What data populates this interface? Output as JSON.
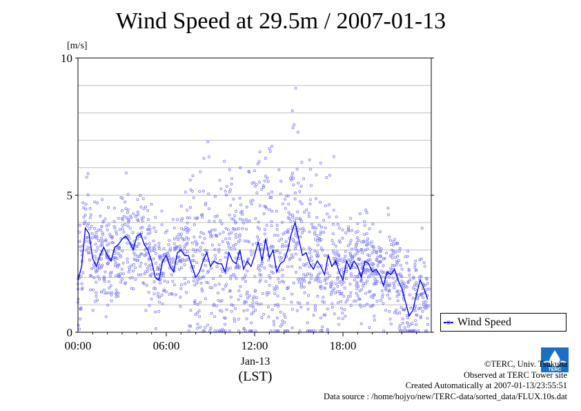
{
  "title": "Wind Speed at 29.5m / 2007-01-13",
  "chart_data": {
    "type": "scatter",
    "title": "Wind Speed at 29.5m / 2007-01-13",
    "ylabel": "[m/s]",
    "xlabel": "(LST)",
    "date_label": "Jan-13",
    "x_unit": "hour",
    "xlim": [
      0,
      24
    ],
    "ylim": [
      0,
      10
    ],
    "x_ticks": [
      0,
      6,
      12,
      18
    ],
    "x_tick_labels": [
      "00:00",
      "06:00",
      "12:00",
      "18:00"
    ],
    "y_ticks": [
      0,
      5,
      10
    ],
    "y_tick_labels": [
      "0",
      "5",
      "10"
    ],
    "grid": true,
    "legend_position": "right, outside plot",
    "series": [
      {
        "name": "Wind Speed",
        "color": "#0000ff",
        "scatter_color": "#7c7cff",
        "x": [
          0,
          0.25,
          0.5,
          0.75,
          1,
          1.25,
          1.5,
          1.75,
          2,
          2.25,
          2.5,
          2.75,
          3,
          3.25,
          3.5,
          3.75,
          4,
          4.25,
          4.5,
          4.75,
          5,
          5.25,
          5.5,
          5.75,
          6,
          6.25,
          6.5,
          6.75,
          7,
          7.25,
          7.5,
          7.75,
          8,
          8.25,
          8.5,
          8.75,
          9,
          9.25,
          9.5,
          9.75,
          10,
          10.25,
          10.5,
          10.75,
          11,
          11.25,
          11.5,
          11.75,
          12,
          12.25,
          12.5,
          12.75,
          13,
          13.25,
          13.5,
          13.75,
          14,
          14.25,
          14.5,
          14.75,
          15,
          15.25,
          15.5,
          15.75,
          16,
          16.25,
          16.5,
          16.75,
          17,
          17.25,
          17.5,
          17.75,
          18,
          18.25,
          18.5,
          18.75,
          19,
          19.25,
          19.5,
          19.75,
          20,
          20.25,
          20.5,
          20.75,
          21,
          21.25,
          21.5,
          21.75,
          22,
          22.25,
          22.5,
          22.75,
          23,
          23.25,
          23.5,
          23.75
        ],
        "values": [
          1.9,
          2.4,
          3.8,
          3.6,
          2.7,
          2.4,
          2.8,
          3.1,
          2.8,
          2.6,
          3.1,
          3.2,
          3.4,
          3.5,
          3.3,
          3.0,
          3.5,
          3.6,
          3.2,
          3.0,
          2.6,
          2.0,
          1.9,
          2.6,
          2.8,
          2.4,
          2.2,
          2.9,
          3.0,
          2.8,
          2.8,
          2.4,
          2.0,
          2.2,
          2.6,
          2.9,
          2.4,
          2.6,
          2.5,
          2.5,
          2.2,
          2.9,
          2.6,
          2.5,
          3.0,
          2.3,
          2.6,
          2.4,
          2.8,
          3.3,
          2.6,
          3.4,
          2.7,
          3.0,
          2.2,
          2.5,
          2.6,
          3.0,
          3.6,
          4.0,
          3.4,
          2.8,
          2.9,
          2.5,
          2.3,
          2.6,
          2.4,
          2.1,
          2.8,
          2.4,
          2.6,
          2.2,
          1.9,
          2.6,
          2.3,
          2.6,
          2.4,
          2.0,
          2.6,
          2.5,
          2.2,
          2.3,
          2.1,
          1.7,
          2.2,
          2.1,
          2.3,
          1.9,
          1.6,
          1.1,
          0.6,
          0.8,
          1.4,
          1.9,
          1.6,
          1.2
        ]
      }
    ],
    "scatter_peaks": [
      8.9,
      7.3,
      6.7,
      6.2
    ]
  },
  "legend": {
    "label": "Wind Speed"
  },
  "credits": {
    "copyright": "©TERC, Univ. Tsukuba",
    "observed": "Observed at TERC Tower site",
    "created": "Created Automatically at 2007-01-13/23:55:51",
    "source": "Data source : /home/hojyo/new/TERC-data/sorted_data/FLUX.10s.dat"
  },
  "logo": {
    "text": "TERC",
    "color": "#1a6fc2"
  }
}
